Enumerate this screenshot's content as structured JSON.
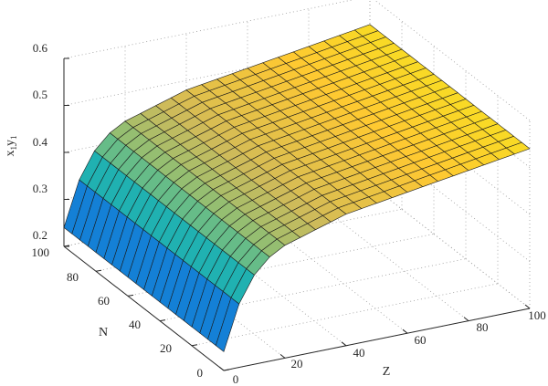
{
  "chart_data": {
    "type": "surface3d",
    "title": "",
    "xlabel": "Z",
    "ylabel": "N",
    "zlabel": {
      "base": "x",
      "sub1": "1",
      "mid": "y",
      "sub2": "1"
    },
    "xlim": [
      0,
      100
    ],
    "ylim": [
      0,
      100
    ],
    "zlim": [
      0.2,
      0.6
    ],
    "x_ticks": [
      "0",
      "20",
      "40",
      "60",
      "80",
      "100"
    ],
    "y_ticks": [
      "0",
      "20",
      "40",
      "60",
      "80",
      "100"
    ],
    "z_ticks": [
      "0.2",
      "0.3",
      "0.4",
      "0.5",
      "0.6"
    ],
    "grid": true,
    "colormap": "parula",
    "surface": {
      "z_values": [
        0,
        20,
        40,
        60,
        80,
        100
      ],
      "n_values": [
        0,
        20,
        40,
        60,
        80,
        100
      ],
      "height_along_z": [
        0.24,
        0.44,
        0.48,
        0.5,
        0.52,
        0.54
      ],
      "mesh_cells": 20
    }
  }
}
